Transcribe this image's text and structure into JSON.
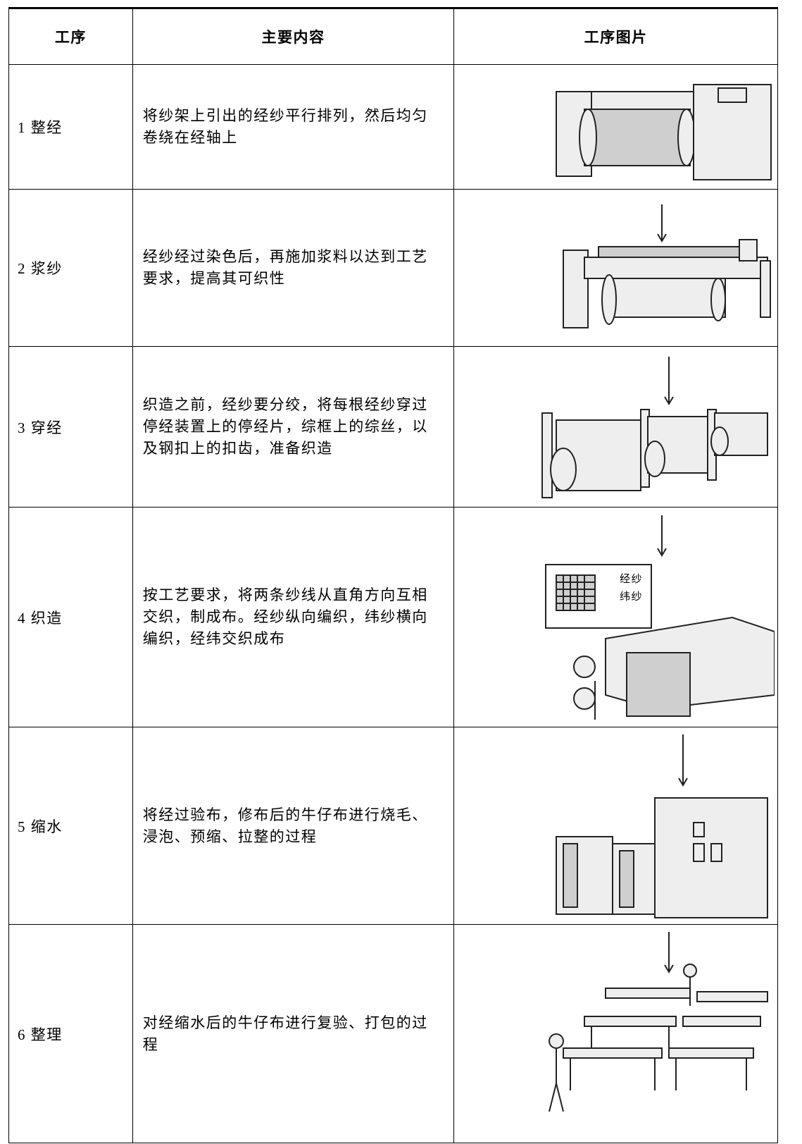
{
  "table": {
    "header": [
      "工序",
      "主要内容",
      "工序图片"
    ],
    "rows": [
      [
        "1 整经",
        "将纱架上引出的经纱平行排列，然后均匀卷绕在经轴上"
      ],
      [
        "2 浆纱",
        "经纱经过染色后，再施加浆料以达到工艺要求，提高其可织性"
      ],
      [
        "3 穿经",
        "织造之前，经纱要分绞，将每根经纱穿过停经装置上的停经片，综框上的综丝，以及钢扣上的扣齿，准备织造"
      ],
      [
        "4 织造",
        "按工艺要求，将两条纱线从直角方向互相交织，制成布。经纱纵向编织，纬纱横向编织，经纬交织成布"
      ],
      [
        "5 缩水",
        "将经过验布，修布后的牛仔布进行烧毛、浸泡、预缩、拉整的过程"
      ],
      [
        "6 整理",
        "对经缩水后的牛仔布进行复验、打包的过程"
      ]
    ],
    "image_labels": {
      "warp": "经纱",
      "weft": "纬纱"
    }
  }
}
